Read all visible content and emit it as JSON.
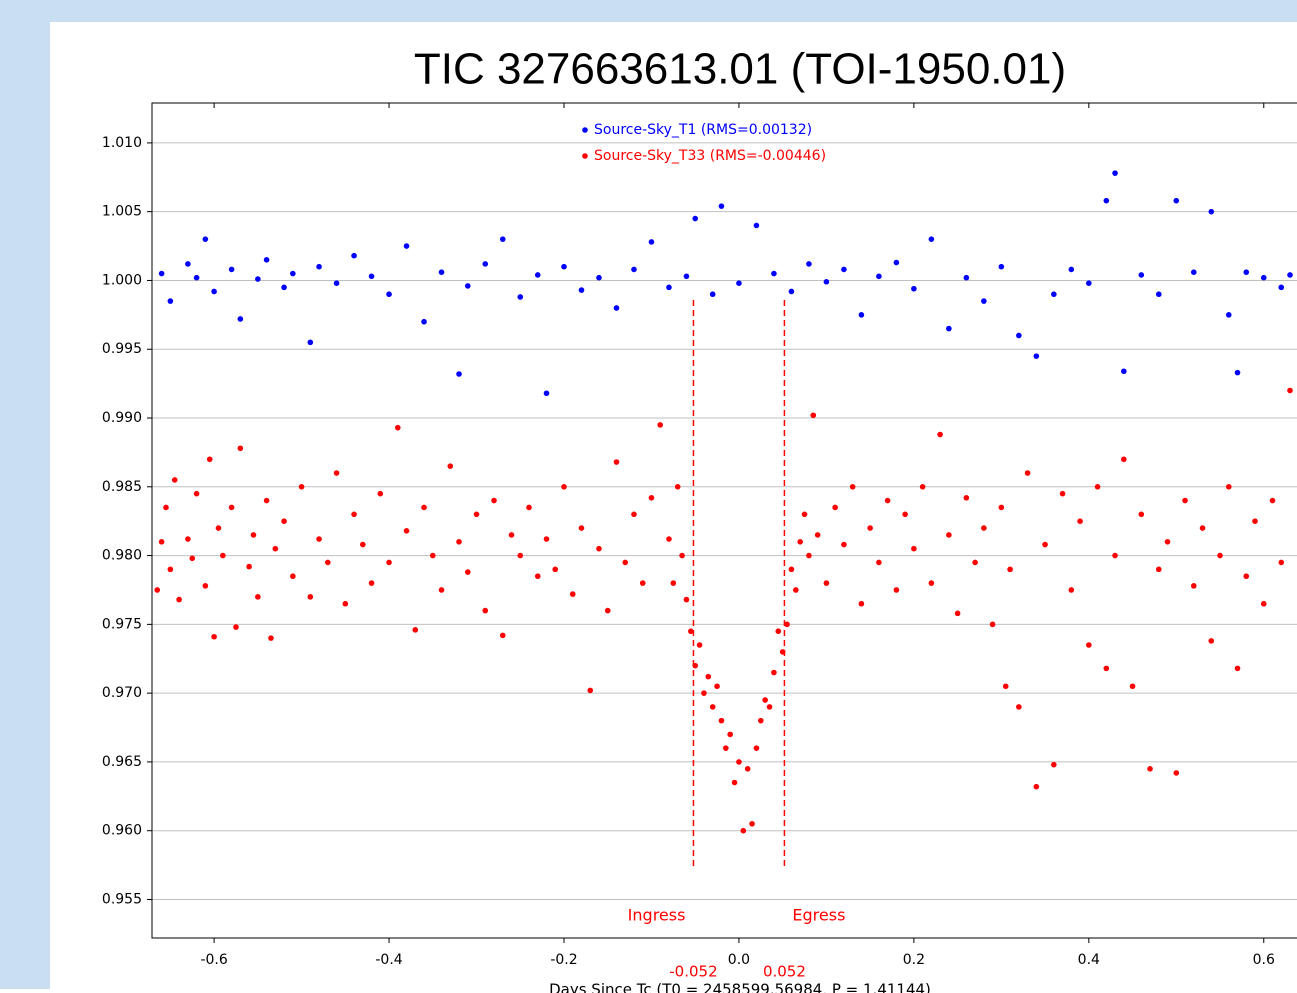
{
  "chart_data": {
    "type": "scatter",
    "title": "TIC 327663613.01 (TOI-1950.01)",
    "xlabel": "Days Since Tc (T0 = 2458599.56984, P = 1.41144)",
    "xlim": [
      -0.671,
      0.638
    ],
    "ylim": [
      0.9522,
      1.0129
    ],
    "xticks": [
      -0.6,
      -0.4,
      -0.2,
      {
        "value": 0,
        "label": "0.0"
      },
      0.2,
      0.4,
      0.6
    ],
    "yticks": [
      0.955,
      {
        "value": 0.96,
        "label": "0.960"
      },
      0.965,
      {
        "value": 0.97,
        "label": "0.970"
      },
      0.975,
      {
        "value": 0.98,
        "label": "0.980"
      },
      0.985,
      {
        "value": 0.99,
        "label": "0.990"
      },
      0.995,
      {
        "value": 1.0,
        "label": "1.000"
      },
      1.005,
      {
        "value": 1.01,
        "label": "1.010"
      }
    ],
    "grid": true,
    "legend": "top-center",
    "annotations": [
      {
        "text": "Ingress",
        "x": -0.052,
        "color": "#ff0000"
      },
      {
        "text": "Egress",
        "x": 0.052,
        "color": "#ff0000"
      }
    ],
    "series": [
      {
        "name": "Source-Sky_T1 (RMS=0.00132)",
        "color": "#0000ff",
        "x": [
          -0.66,
          -0.65,
          -0.63,
          -0.62,
          -0.61,
          -0.6,
          -0.58,
          -0.57,
          -0.55,
          -0.54,
          -0.52,
          -0.51,
          -0.49,
          -0.48,
          -0.46,
          -0.44,
          -0.42,
          -0.4,
          -0.38,
          -0.36,
          -0.34,
          -0.32,
          -0.31,
          -0.29,
          -0.27,
          -0.25,
          -0.23,
          -0.22,
          -0.2,
          -0.18,
          -0.16,
          -0.14,
          -0.12,
          -0.1,
          -0.08,
          -0.06,
          -0.05,
          -0.03,
          -0.02,
          0,
          0.02,
          0.04,
          0.06,
          0.08,
          0.1,
          0.12,
          0.14,
          0.16,
          0.18,
          0.2,
          0.22,
          0.24,
          0.26,
          0.28,
          0.3,
          0.32,
          0.34,
          0.36,
          0.38,
          0.4,
          0.42,
          0.43,
          0.44,
          0.46,
          0.48,
          0.5,
          0.52,
          0.54,
          0.56,
          0.57,
          0.58,
          0.6,
          0.62,
          0.63
        ],
        "values": [
          1.0005,
          0.9985,
          1.0012,
          1.0002,
          1.003,
          0.9992,
          1.0008,
          0.9972,
          1.0001,
          1.0015,
          0.9995,
          1.0005,
          0.9955,
          1.001,
          0.9998,
          1.0018,
          1.0003,
          0.999,
          1.0025,
          0.997,
          1.0006,
          0.9932,
          0.9996,
          1.0012,
          1.003,
          0.9988,
          1.0004,
          0.9918,
          1.001,
          0.9993,
          1.0002,
          0.998,
          1.0008,
          1.0028,
          0.9995,
          1.0003,
          1.0045,
          0.999,
          1.0054,
          0.9998,
          1.004,
          1.0005,
          0.9992,
          1.0012,
          0.9999,
          1.0008,
          0.9975,
          1.0003,
          1.0013,
          0.9994,
          1.003,
          0.9965,
          1.0002,
          0.9985,
          1.001,
          0.996,
          0.9945,
          0.999,
          1.0008,
          0.9998,
          1.0058,
          1.0078,
          0.9934,
          1.0004,
          0.999,
          1.0058,
          1.0006,
          1.005,
          0.9975,
          0.9933,
          1.0006,
          1.0002,
          0.9995,
          1.0004
        ]
      },
      {
        "name": "Source-Sky_T33 (RMS=-0.00446)",
        "color": "#ff0000",
        "x": [
          -0.665,
          -0.66,
          -0.655,
          -0.65,
          -0.645,
          -0.64,
          -0.63,
          -0.625,
          -0.62,
          -0.61,
          -0.605,
          -0.6,
          -0.595,
          -0.59,
          -0.58,
          -0.575,
          -0.57,
          -0.56,
          -0.555,
          -0.55,
          -0.54,
          -0.535,
          -0.53,
          -0.52,
          -0.51,
          -0.5,
          -0.49,
          -0.48,
          -0.47,
          -0.46,
          -0.45,
          -0.44,
          -0.43,
          -0.42,
          -0.41,
          -0.4,
          -0.39,
          -0.38,
          -0.37,
          -0.36,
          -0.35,
          -0.34,
          -0.33,
          -0.32,
          -0.31,
          -0.3,
          -0.29,
          -0.28,
          -0.27,
          -0.26,
          -0.25,
          -0.24,
          -0.23,
          -0.22,
          -0.21,
          -0.2,
          -0.19,
          -0.18,
          -0.17,
          -0.16,
          -0.15,
          -0.14,
          -0.13,
          -0.12,
          -0.11,
          -0.1,
          -0.09,
          -0.08,
          -0.075,
          -0.07,
          -0.065,
          -0.06,
          -0.055,
          -0.05,
          -0.045,
          -0.04,
          -0.035,
          -0.03,
          -0.025,
          -0.02,
          -0.015,
          -0.01,
          -0.005,
          0,
          0.005,
          0.01,
          0.015,
          0.02,
          0.025,
          0.03,
          0.035,
          0.04,
          0.045,
          0.05,
          0.055,
          0.06,
          0.065,
          0.07,
          0.075,
          0.08,
          0.085,
          0.09,
          0.1,
          0.11,
          0.12,
          0.13,
          0.14,
          0.15,
          0.16,
          0.17,
          0.18,
          0.19,
          0.2,
          0.21,
          0.22,
          0.23,
          0.24,
          0.25,
          0.26,
          0.27,
          0.28,
          0.29,
          0.3,
          0.305,
          0.31,
          0.32,
          0.33,
          0.34,
          0.35,
          0.36,
          0.37,
          0.38,
          0.39,
          0.4,
          0.41,
          0.42,
          0.43,
          0.44,
          0.45,
          0.46,
          0.47,
          0.48,
          0.49,
          0.5,
          0.51,
          0.52,
          0.53,
          0.54,
          0.55,
          0.56,
          0.57,
          0.58,
          0.59,
          0.6,
          0.61,
          0.62,
          0.63
        ],
        "values": [
          0.9775,
          0.981,
          0.9835,
          0.979,
          0.9855,
          0.9768,
          0.9812,
          0.9798,
          0.9845,
          0.9778,
          0.987,
          0.9741,
          0.982,
          0.98,
          0.9835,
          0.9748,
          0.9878,
          0.9792,
          0.9815,
          0.977,
          0.984,
          0.974,
          0.9805,
          0.9825,
          0.9785,
          0.985,
          0.977,
          0.9812,
          0.9795,
          0.986,
          0.9765,
          0.983,
          0.9808,
          0.978,
          0.9845,
          0.9795,
          0.9893,
          0.9818,
          0.9746,
          0.9835,
          0.98,
          0.9775,
          0.9865,
          0.981,
          0.9788,
          0.983,
          0.976,
          0.984,
          0.9742,
          0.9815,
          0.98,
          0.9835,
          0.9785,
          0.9812,
          0.979,
          0.985,
          0.9772,
          0.982,
          0.9702,
          0.9805,
          0.976,
          0.9868,
          0.9795,
          0.983,
          0.978,
          0.9842,
          0.9895,
          0.9812,
          0.978,
          0.985,
          0.98,
          0.9768,
          0.9745,
          0.972,
          0.9735,
          0.97,
          0.9712,
          0.969,
          0.9705,
          0.968,
          0.966,
          0.967,
          0.9635,
          0.965,
          0.96,
          0.9645,
          0.9605,
          0.966,
          0.968,
          0.9695,
          0.969,
          0.9715,
          0.9745,
          0.973,
          0.975,
          0.979,
          0.9775,
          0.981,
          0.983,
          0.98,
          0.9902,
          0.9815,
          0.978,
          0.9835,
          0.9808,
          0.985,
          0.9765,
          0.982,
          0.9795,
          0.984,
          0.9775,
          0.983,
          0.9805,
          0.985,
          0.978,
          0.9888,
          0.9815,
          0.9758,
          0.9842,
          0.9795,
          0.982,
          0.975,
          0.9835,
          0.9705,
          0.979,
          0.969,
          0.986,
          0.9632,
          0.9808,
          0.9648,
          0.9845,
          0.9775,
          0.9825,
          0.9735,
          0.985,
          0.9718,
          0.98,
          0.987,
          0.9705,
          0.983,
          0.9645,
          0.979,
          0.981,
          0.9642,
          0.984,
          0.9778,
          0.982,
          0.9738,
          0.98,
          0.985,
          0.9718,
          0.9785,
          0.9825,
          0.9765,
          0.984,
          0.9795,
          0.992
        ]
      }
    ]
  }
}
